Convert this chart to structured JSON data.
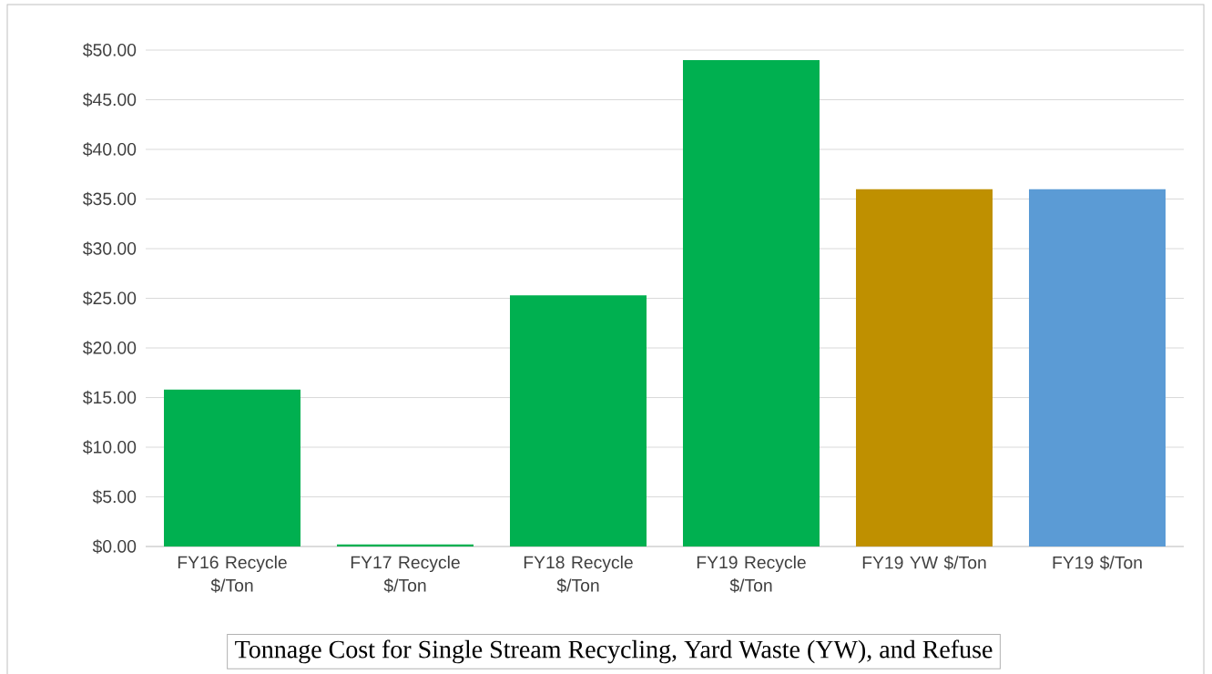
{
  "chart_data": {
    "type": "bar",
    "title": "Tonnage Cost for Single Stream Recycling, Yard Waste (YW), and Refuse",
    "categories": [
      "FY16 Recycle $/Ton",
      "FY17 Recycle $/Ton",
      "FY18 Recycle $/Ton",
      "FY19 Recycle $/Ton",
      "FY19 YW $/Ton",
      "FY19 $/Ton"
    ],
    "values": [
      15.8,
      0.2,
      25.3,
      49.0,
      36.0,
      36.0
    ],
    "colors": [
      "#00b050",
      "#00b050",
      "#00b050",
      "#00b050",
      "#bf9000",
      "#5b9bd5"
    ],
    "ylim": [
      0,
      50
    ],
    "yticks": [
      {
        "value": 0,
        "label": "$0.00"
      },
      {
        "value": 5,
        "label": "$5.00"
      },
      {
        "value": 10,
        "label": "$10.00"
      },
      {
        "value": 15,
        "label": "$15.00"
      },
      {
        "value": 20,
        "label": "$20.00"
      },
      {
        "value": 25,
        "label": "$25.00"
      },
      {
        "value": 30,
        "label": "$30.00"
      },
      {
        "value": 35,
        "label": "$35.00"
      },
      {
        "value": 40,
        "label": "$40.00"
      },
      {
        "value": 45,
        "label": "$45.00"
      },
      {
        "value": 50,
        "label": "$50.00"
      }
    ],
    "grid": "y"
  }
}
